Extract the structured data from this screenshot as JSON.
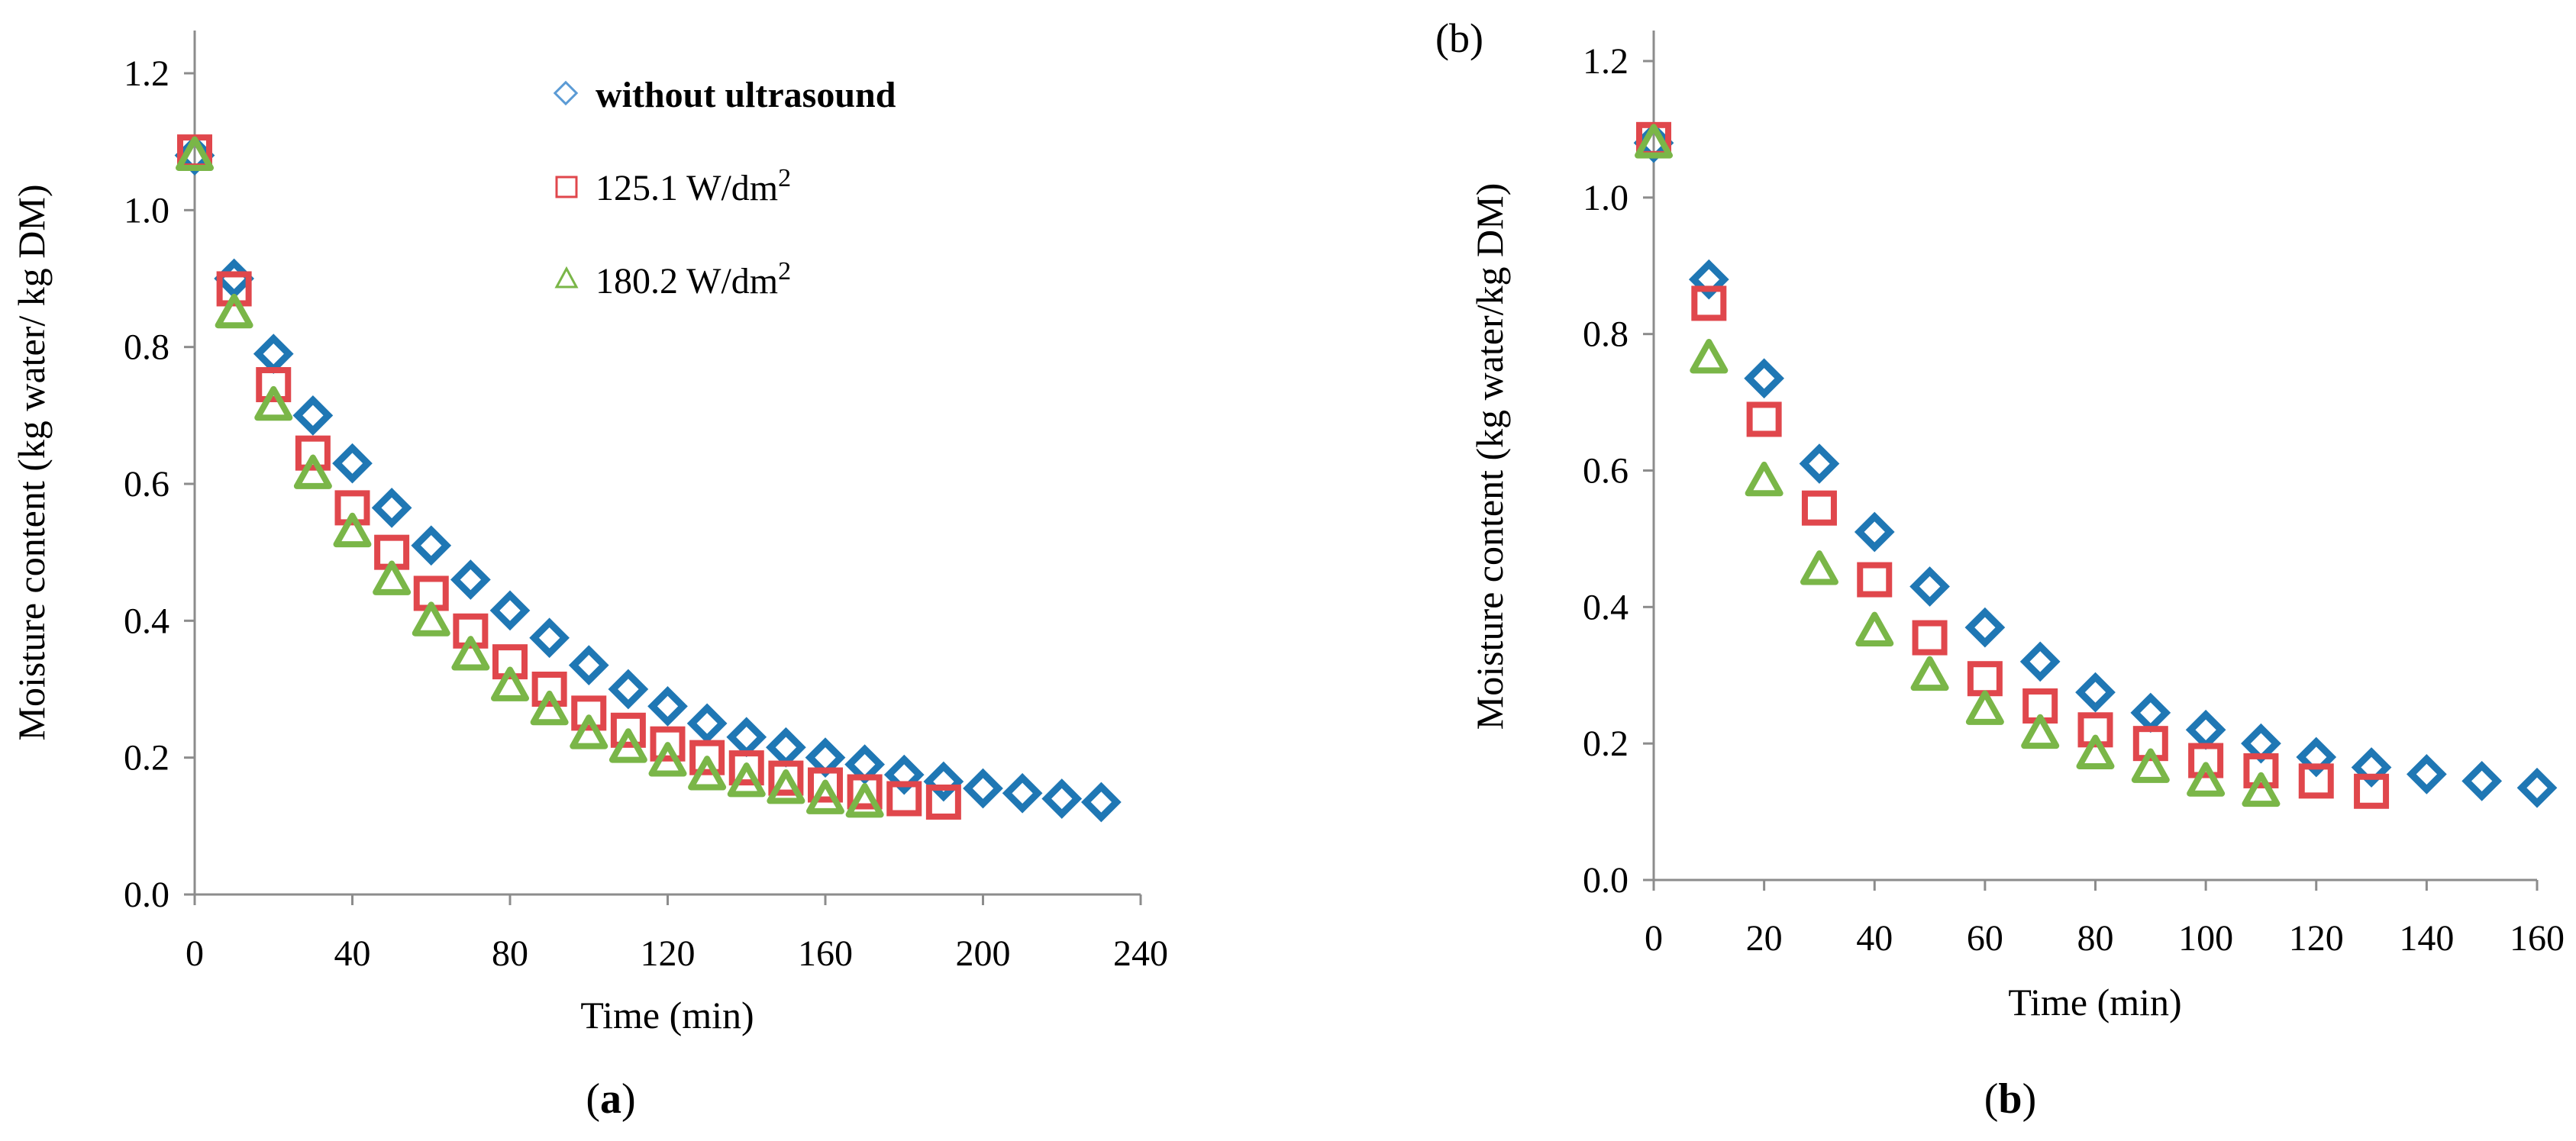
{
  "chart_data": [
    {
      "type": "scatter",
      "panel": "a",
      "caption": "(a)",
      "caption_letter": "a",
      "xlabel": "Time (min)",
      "ylabel": "Moisture content  (kg water/ kg DM)",
      "xlim": [
        0,
        240
      ],
      "ylim": [
        0.0,
        1.2
      ],
      "xticks": [
        "0",
        "40",
        "80",
        "120",
        "160",
        "200",
        "240"
      ],
      "yticks": [
        "0.0",
        "0.2",
        "0.4",
        "0.6",
        "0.8",
        "1.0",
        "1.2"
      ],
      "grid": false,
      "legend_position": "top-right",
      "series": [
        {
          "name": "without ultrasound",
          "marker": "diamond",
          "color": "#1f77b4",
          "x": [
            0,
            10,
            20,
            30,
            40,
            50,
            60,
            70,
            80,
            90,
            100,
            110,
            120,
            130,
            140,
            150,
            160,
            170,
            180,
            190,
            200,
            210,
            220,
            230
          ],
          "y": [
            1.08,
            0.9,
            0.79,
            0.7,
            0.63,
            0.565,
            0.51,
            0.46,
            0.415,
            0.375,
            0.335,
            0.3,
            0.275,
            0.25,
            0.23,
            0.215,
            0.2,
            0.19,
            0.175,
            0.165,
            0.155,
            0.148,
            0.14,
            0.135
          ]
        },
        {
          "name": "125.1 W/dm",
          "name_sup": "2",
          "marker": "square",
          "color": "#e0474c",
          "x": [
            0,
            10,
            20,
            30,
            40,
            50,
            60,
            70,
            80,
            90,
            100,
            110,
            120,
            130,
            140,
            150,
            160,
            170,
            180,
            190
          ],
          "y": [
            1.085,
            0.885,
            0.745,
            0.645,
            0.565,
            0.5,
            0.44,
            0.385,
            0.34,
            0.3,
            0.265,
            0.24,
            0.22,
            0.2,
            0.185,
            0.17,
            0.16,
            0.15,
            0.14,
            0.135
          ]
        },
        {
          "name": "180.2 W/dm",
          "name_sup": "2",
          "marker": "triangle",
          "color": "#7ab648",
          "x": [
            0,
            10,
            20,
            30,
            40,
            50,
            60,
            70,
            80,
            90,
            100,
            110,
            120,
            130,
            140,
            150,
            160,
            170
          ],
          "y": [
            1.08,
            0.85,
            0.715,
            0.615,
            0.53,
            0.46,
            0.4,
            0.35,
            0.305,
            0.27,
            0.235,
            0.215,
            0.195,
            0.175,
            0.165,
            0.155,
            0.14,
            0.135
          ]
        }
      ]
    },
    {
      "type": "scatter",
      "panel": "b",
      "caption": "(b)",
      "caption_letter": "b",
      "corner_label": "(b)",
      "xlabel": "Time (min)",
      "ylabel": "Moisture content  (kg water/kg DM)",
      "xlim": [
        0,
        160
      ],
      "ylim": [
        0.0,
        1.2
      ],
      "xticks": [
        "0",
        "20",
        "40",
        "60",
        "80",
        "100",
        "120",
        "140",
        "160"
      ],
      "yticks": [
        "0.0",
        "0.2",
        "0.4",
        "0.6",
        "0.8",
        "1.0",
        "1.2"
      ],
      "grid": false,
      "series": [
        {
          "name": "without ultrasound",
          "marker": "diamond",
          "color": "#1f77b4",
          "x": [
            0,
            10,
            20,
            30,
            40,
            50,
            60,
            70,
            80,
            90,
            100,
            110,
            120,
            130,
            140,
            150,
            160
          ],
          "y": [
            1.08,
            0.88,
            0.735,
            0.61,
            0.51,
            0.43,
            0.37,
            0.32,
            0.275,
            0.245,
            0.22,
            0.2,
            0.18,
            0.165,
            0.155,
            0.145,
            0.135
          ]
        },
        {
          "name": "125.1 W/dm",
          "name_sup": "2",
          "marker": "square",
          "color": "#e0474c",
          "x": [
            0,
            10,
            20,
            30,
            40,
            50,
            60,
            70,
            80,
            90,
            100,
            110,
            120,
            130
          ],
          "y": [
            1.085,
            0.845,
            0.675,
            0.545,
            0.44,
            0.355,
            0.295,
            0.255,
            0.22,
            0.2,
            0.175,
            0.16,
            0.145,
            0.13
          ]
        },
        {
          "name": "180.2 W/dm",
          "name_sup": "2",
          "marker": "triangle",
          "color": "#7ab648",
          "x": [
            0,
            10,
            20,
            30,
            40,
            50,
            60,
            70,
            80,
            90,
            100,
            110
          ],
          "y": [
            1.08,
            0.765,
            0.585,
            0.455,
            0.365,
            0.3,
            0.25,
            0.215,
            0.185,
            0.165,
            0.145,
            0.13
          ]
        }
      ]
    }
  ]
}
